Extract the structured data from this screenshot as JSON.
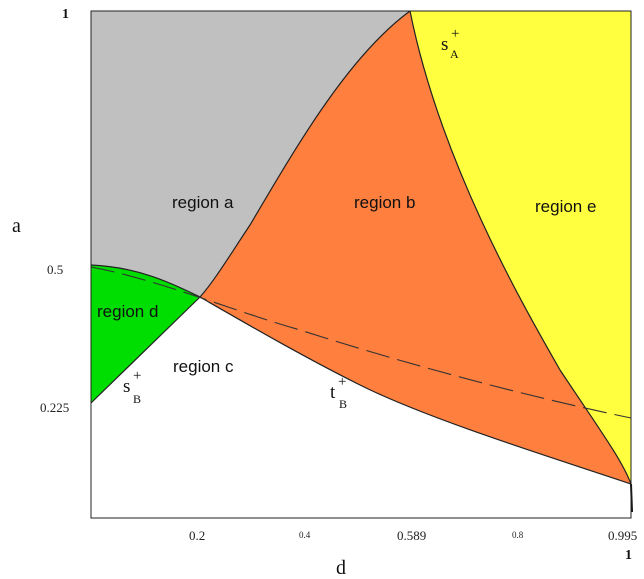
{
  "axes": {
    "x_label": "d",
    "y_label": "a",
    "x_ticks": [
      "0.2",
      "0.4",
      "0.589",
      "0.8",
      "0.995"
    ],
    "x_max_label": "1",
    "y_ticks": [
      "0.5",
      "0.225"
    ],
    "y_max_label": "1"
  },
  "regions": {
    "a": {
      "label": "region a",
      "color": "#c0c0c0"
    },
    "b": {
      "label": "region b",
      "color": "#ff7f3f"
    },
    "c": {
      "label": "region c",
      "color": "#ffffff"
    },
    "d": {
      "label": "region d",
      "color": "#00dd00"
    },
    "e": {
      "label": "region e",
      "color": "#ffff40"
    }
  },
  "curves": {
    "s_A": {
      "base": "s",
      "sup": "+",
      "sub": "A"
    },
    "s_B": {
      "base": "s",
      "sup": "+",
      "sub": "B"
    },
    "t_B": {
      "base": "t",
      "sup": "+",
      "sub": "B"
    }
  }
}
